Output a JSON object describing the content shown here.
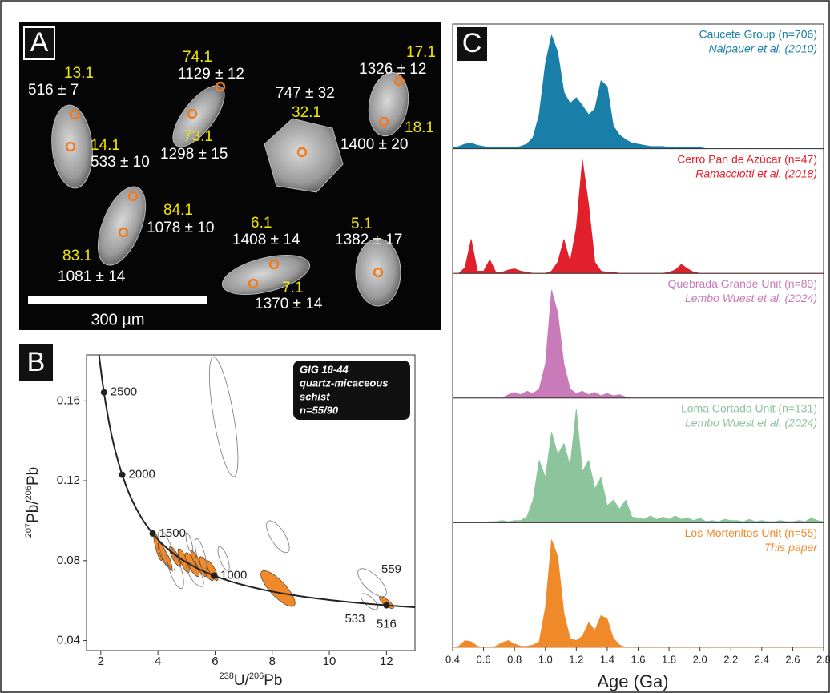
{
  "panel_a": {
    "label": "A",
    "scale_bar": "300 µm",
    "spots": [
      {
        "spot": "13.1",
        "age": "516 ± 7"
      },
      {
        "spot": "14.1",
        "age": "533 ± 10"
      },
      {
        "spot": "74.1",
        "age": "1129 ± 12"
      },
      {
        "spot": "73.1",
        "age": "1298 ± 15"
      },
      {
        "spot": "32.1",
        "age": "747 ± 32"
      },
      {
        "spot": "17.1",
        "age": "1326 ± 12"
      },
      {
        "spot": "18.1",
        "age": "1400 ± 20"
      },
      {
        "spot": "84.1",
        "age": "1078 ± 10"
      },
      {
        "spot": "83.1",
        "age": "1081 ± 14"
      },
      {
        "spot": "6.1",
        "age": "1408 ± 14"
      },
      {
        "spot": "7.1",
        "age": "1370 ± 14"
      },
      {
        "spot": "5.1",
        "age": "1382 ± 17"
      }
    ]
  },
  "chart_data": [
    {
      "type": "concordia",
      "panel_label": "B",
      "x_label": [
        "238",
        "U/",
        "206",
        "Pb"
      ],
      "y_label": [
        "207",
        "Pb/",
        "206",
        "Pb"
      ],
      "xlim": [
        1.5,
        13
      ],
      "ylim": [
        0.035,
        0.183
      ],
      "xticks": [
        2,
        4,
        6,
        8,
        10,
        12
      ],
      "yticks": [
        0.04,
        0.08,
        0.12,
        0.16
      ],
      "annotation": [
        "GIG 18-44",
        "quartz-micaceous",
        "schist",
        "n=55/90"
      ],
      "concordia_ages": [
        2500,
        2000,
        1500,
        1000,
        516
      ],
      "series": [
        {
          "color": "#f0892a",
          "rho": -0.8,
          "points": [
            {
              "x": 4.0,
              "y": 0.087,
              "x_err": 0.15,
              "y_err": 0.007
            },
            {
              "x": 4.2,
              "y": 0.083,
              "x_err": 0.2,
              "y_err": 0.006
            },
            {
              "x": 4.4,
              "y": 0.079,
              "x_err": 0.1,
              "y_err": 0.004
            },
            {
              "x": 4.6,
              "y": 0.082,
              "x_err": 0.2,
              "y_err": 0.005
            },
            {
              "x": 4.9,
              "y": 0.08,
              "x_err": 0.2,
              "y_err": 0.006
            },
            {
              "x": 5.2,
              "y": 0.078,
              "x_err": 0.25,
              "y_err": 0.006
            },
            {
              "x": 5.3,
              "y": 0.081,
              "x_err": 0.15,
              "y_err": 0.004
            },
            {
              "x": 5.5,
              "y": 0.077,
              "x_err": 0.2,
              "y_err": 0.005
            },
            {
              "x": 5.7,
              "y": 0.076,
              "x_err": 0.25,
              "y_err": 0.006
            },
            {
              "x": 5.9,
              "y": 0.075,
              "x_err": 0.2,
              "y_err": 0.005
            },
            {
              "x": 8.2,
              "y": 0.066,
              "x_err": 0.6,
              "y_err": 0.009
            },
            {
              "x": 12.0,
              "y": 0.059,
              "x_err": 0.25,
              "y_err": 0.003
            }
          ]
        },
        {
          "color": "none",
          "rho": -0.7,
          "points": [
            {
              "x": 6.3,
              "y": 0.152,
              "x_err": 0.5,
              "y_err": 0.03
            },
            {
              "x": 8.2,
              "y": 0.092,
              "x_err": 0.4,
              "y_err": 0.008
            },
            {
              "x": 11.5,
              "y": 0.069,
              "x_err": 0.5,
              "y_err": 0.007,
              "label": "559"
            },
            {
              "x": 11.4,
              "y": 0.0595,
              "x_err": 0.3,
              "y_err": 0.004,
              "label": "533"
            },
            {
              "x": 4.3,
              "y": 0.085,
              "x_err": 0.3,
              "y_err": 0.01
            },
            {
              "x": 5.1,
              "y": 0.089,
              "x_err": 0.12,
              "y_err": 0.005
            },
            {
              "x": 5.5,
              "y": 0.083,
              "x_err": 0.2,
              "y_err": 0.008
            },
            {
              "x": 6.3,
              "y": 0.081,
              "x_err": 0.2,
              "y_err": 0.006
            },
            {
              "x": 4.6,
              "y": 0.076,
              "x_err": 0.3,
              "y_err": 0.01
            },
            {
              "x": 5.3,
              "y": 0.073,
              "x_err": 0.3,
              "y_err": 0.006
            }
          ]
        }
      ]
    },
    {
      "type": "kde",
      "panel_label": "C",
      "x_label": "Age (Ga)",
      "xlim": [
        0.4,
        2.8
      ],
      "ylim": [
        0,
        1.1
      ],
      "xticks": [
        0.4,
        0.6,
        0.8,
        {
          "value": 1,
          "label": "1.0"
        },
        1.2,
        1.4,
        1.6,
        1.8,
        {
          "value": 2,
          "label": "2.0"
        },
        2.2,
        2.4,
        2.6,
        2.8
      ],
      "x": [
        0.4,
        0.44,
        0.48,
        0.52,
        0.56,
        0.6,
        0.64,
        0.68,
        0.72,
        0.76,
        0.8,
        0.84,
        0.88,
        0.92,
        0.96,
        1.0,
        1.04,
        1.08,
        1.12,
        1.16,
        1.2,
        1.24,
        1.28,
        1.32,
        1.36,
        1.4,
        1.44,
        1.48,
        1.52,
        1.56,
        1.6,
        1.64,
        1.68,
        1.72,
        1.76,
        1.8,
        1.84,
        1.88,
        1.92,
        1.96,
        2.0,
        2.04,
        2.08,
        2.12,
        2.16,
        2.2,
        2.24,
        2.28,
        2.32,
        2.36,
        2.4,
        2.44,
        2.48,
        2.52,
        2.56,
        2.6,
        2.64,
        2.68,
        2.72,
        2.76,
        2.8
      ],
      "series": [
        {
          "name": "Caucete Group (n=706)",
          "reference": "Naipauer et al. (2010)",
          "color": "#1a7fa8",
          "values": [
            0.01,
            0.02,
            0.04,
            0.05,
            0.03,
            0.02,
            0.01,
            0.01,
            0.01,
            0.01,
            0.01,
            0.02,
            0.04,
            0.1,
            0.3,
            0.75,
            1.0,
            0.85,
            0.5,
            0.4,
            0.45,
            0.38,
            0.3,
            0.35,
            0.6,
            0.55,
            0.2,
            0.12,
            0.08,
            0.05,
            0.04,
            0.03,
            0.02,
            0.02,
            0.02,
            0.01,
            0.01,
            0.01,
            0.01,
            0.01,
            0.01,
            0,
            0,
            0,
            0,
            0,
            0,
            0,
            0,
            0,
            0,
            0,
            0,
            0,
            0,
            0,
            0,
            0,
            0,
            0,
            0
          ]
        },
        {
          "name": "Cerro Pan de Azúcar (n=47)",
          "reference": "Ramacciotti et al. (2018)",
          "color": "#e0202a",
          "values": [
            0,
            0,
            0.05,
            0.3,
            0.02,
            0.02,
            0.12,
            0.01,
            0.01,
            0.03,
            0.04,
            0.02,
            0.01,
            0,
            0,
            0,
            0.02,
            0.1,
            0.3,
            0.1,
            0.4,
            1.0,
            0.6,
            0.1,
            0.02,
            0.01,
            0.01,
            0,
            0,
            0,
            0,
            0,
            0,
            0,
            0,
            0.01,
            0.03,
            0.08,
            0.04,
            0.01,
            0,
            0,
            0,
            0,
            0,
            0,
            0,
            0,
            0,
            0,
            0,
            0,
            0,
            0,
            0,
            0,
            0,
            0,
            0,
            0,
            0
          ]
        },
        {
          "name": "Quebrada Grande Unit (n=89)",
          "reference": "Lembo Wuest et al. (2024)",
          "color": "#c97ab8",
          "values": [
            0,
            0,
            0,
            0,
            0,
            0,
            0,
            0,
            0,
            0.03,
            0.05,
            0.03,
            0.06,
            0.04,
            0.08,
            0.3,
            0.95,
            0.75,
            0.3,
            0.08,
            0.04,
            0.06,
            0.03,
            0.05,
            0.02,
            0.04,
            0.02,
            0.03,
            0.01,
            0,
            0,
            0,
            0,
            0,
            0,
            0,
            0,
            0,
            0,
            0,
            0,
            0,
            0,
            0,
            0,
            0,
            0,
            0,
            0,
            0,
            0,
            0,
            0,
            0,
            0,
            0,
            0,
            0,
            0,
            0,
            0
          ]
        },
        {
          "name": "Loma Cortada Unit (n=131)",
          "reference": "Lembo Wuest et al. (2024)",
          "color": "#8cc49c",
          "values": [
            0,
            0,
            0,
            0,
            0,
            0,
            0.01,
            0.01,
            0.02,
            0.01,
            0.02,
            0.02,
            0.05,
            0.2,
            0.55,
            0.4,
            0.8,
            0.6,
            0.7,
            0.5,
            1.0,
            0.45,
            0.55,
            0.3,
            0.4,
            0.15,
            0.2,
            0.12,
            0.2,
            0.05,
            0.04,
            0.03,
            0.06,
            0.03,
            0.05,
            0.03,
            0.06,
            0.03,
            0.04,
            0.02,
            0.04,
            0.01,
            0.02,
            0.01,
            0.03,
            0.02,
            0.02,
            0.01,
            0.03,
            0.01,
            0.02,
            0.01,
            0.01,
            0.02,
            0.01,
            0.01,
            0.02,
            0.01,
            0.04,
            0.02,
            0.01
          ]
        },
        {
          "name": "Los Mortenitos Unit (n=55)",
          "reference": "This paper",
          "color": "#f0892a",
          "values": [
            0,
            0.01,
            0.06,
            0.05,
            0.01,
            0,
            0,
            0.01,
            0.04,
            0.06,
            0.03,
            0.01,
            0.01,
            0.02,
            0.05,
            0.35,
            0.95,
            0.8,
            0.3,
            0.08,
            0.06,
            0.1,
            0.22,
            0.15,
            0.28,
            0.25,
            0.08,
            0.02,
            0,
            0,
            0,
            0,
            0,
            0,
            0,
            0,
            0,
            0,
            0,
            0,
            0,
            0,
            0,
            0,
            0,
            0,
            0,
            0,
            0,
            0,
            0,
            0,
            0,
            0,
            0,
            0,
            0,
            0,
            0,
            0,
            0
          ]
        }
      ]
    }
  ]
}
